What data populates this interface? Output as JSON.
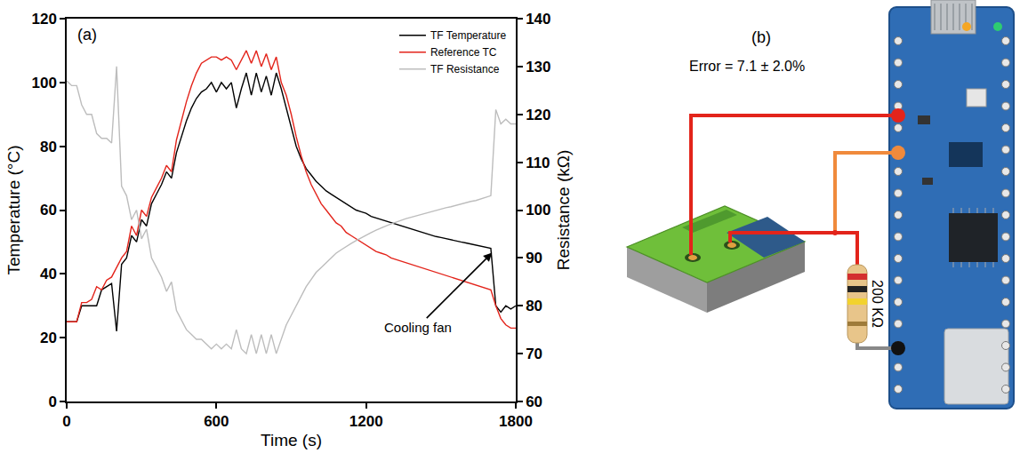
{
  "chart_data": {
    "type": "line",
    "x_label": "Time (s)",
    "y_label": "Temperature (°C)",
    "y2_label": "Resistance (kΩ)",
    "xlim": [
      0,
      1800
    ],
    "xticks": [
      0,
      600,
      1200,
      1800
    ],
    "ylim": [
      0,
      120
    ],
    "yticks": [
      0,
      20,
      40,
      60,
      80,
      100,
      120
    ],
    "y2lim": [
      60,
      140
    ],
    "y2ticks": [
      60,
      70,
      80,
      90,
      100,
      110,
      120,
      130,
      140
    ],
    "grid": false,
    "legend": "upper right",
    "annotations": [
      {
        "text": "(a)"
      },
      {
        "text": "Cooling fan",
        "x": 1710,
        "y": 47
      }
    ],
    "x": [
      0,
      20,
      40,
      60,
      80,
      100,
      120,
      140,
      160,
      180,
      200,
      220,
      240,
      260,
      280,
      300,
      320,
      340,
      360,
      380,
      400,
      420,
      440,
      460,
      480,
      500,
      520,
      540,
      560,
      580,
      600,
      620,
      640,
      660,
      680,
      700,
      720,
      740,
      760,
      780,
      800,
      820,
      840,
      860,
      880,
      900,
      920,
      940,
      960,
      980,
      1000,
      1020,
      1040,
      1060,
      1080,
      1100,
      1120,
      1140,
      1160,
      1180,
      1200,
      1220,
      1240,
      1260,
      1280,
      1300,
      1320,
      1340,
      1360,
      1380,
      1400,
      1420,
      1440,
      1460,
      1480,
      1500,
      1520,
      1540,
      1560,
      1580,
      1600,
      1620,
      1640,
      1660,
      1680,
      1700,
      1720,
      1740,
      1760,
      1780,
      1800
    ],
    "series": [
      {
        "name": "TF Temperature",
        "color": "#000000",
        "values": [
          25,
          25,
          25,
          30,
          30,
          30,
          30,
          35,
          36,
          37,
          22,
          43,
          45,
          52,
          50,
          57,
          55,
          62,
          65,
          68,
          72,
          70,
          78,
          83,
          88,
          92,
          95,
          97,
          98,
          100,
          97,
          100,
          98,
          100,
          92,
          98,
          103,
          96,
          103,
          97,
          102,
          96,
          103,
          98,
          92,
          86,
          80,
          76,
          73,
          71,
          69,
          67.5,
          66,
          65,
          64,
          63,
          62,
          61,
          60,
          59.5,
          59,
          58,
          57.5,
          57,
          56.5,
          56,
          55.5,
          55,
          54.5,
          54,
          53.5,
          53,
          52.5,
          52,
          51.7,
          51.4,
          51,
          50.7,
          50.4,
          50,
          49.7,
          49.4,
          49,
          48.7,
          48.3,
          48,
          30,
          28,
          30,
          29,
          30
        ]
      },
      {
        "name": "Reference TC",
        "color": "#e3241b",
        "values": [
          25,
          25,
          25,
          31,
          31,
          32,
          36,
          35,
          38,
          39,
          42,
          45,
          47,
          55,
          52,
          60,
          58,
          64,
          67,
          70,
          74,
          72,
          82,
          88,
          94,
          99,
          103,
          106,
          107,
          108,
          108,
          107,
          108,
          107,
          104,
          107,
          110,
          106,
          110,
          105,
          109,
          104,
          108,
          100,
          96,
          90,
          83,
          77,
          72,
          68,
          65,
          62,
          60,
          58,
          56,
          55,
          53,
          52,
          51,
          50,
          49,
          48,
          47,
          46.5,
          46,
          45,
          44.5,
          44,
          43.5,
          43,
          42.5,
          42,
          41.5,
          41,
          40.5,
          40,
          39.5,
          39,
          38.5,
          38,
          37.5,
          37,
          36.5,
          36,
          35.5,
          35,
          30,
          26,
          24,
          23,
          23
        ]
      },
      {
        "name": "TF Resistance",
        "color": "#bdbdbd",
        "axis": "y2",
        "values": [
          127,
          126,
          126,
          122,
          120,
          120,
          116,
          115,
          115,
          114,
          130,
          105,
          103,
          98,
          100,
          94,
          96,
          90,
          88,
          86,
          83,
          85,
          79,
          77,
          75,
          74,
          73,
          73,
          72,
          71,
          72,
          71,
          72,
          71,
          75,
          71,
          70,
          74,
          70,
          74,
          70,
          74,
          70,
          73,
          76,
          78,
          80,
          82,
          84,
          85.5,
          87,
          88,
          89,
          90,
          91,
          91.7,
          92.4,
          93,
          93.6,
          94.2,
          94.8,
          95.3,
          95.8,
          96.3,
          96.7,
          97.1,
          97.5,
          97.9,
          98.2,
          98.5,
          98.8,
          99.1,
          99.4,
          99.7,
          100,
          100.2,
          100.5,
          100.7,
          101,
          101.2,
          101.5,
          101.8,
          102,
          102.3,
          102.6,
          103,
          121,
          118,
          119,
          118,
          118
        ]
      }
    ]
  },
  "diagram": {
    "label": "(b)",
    "error_text": "Error = 7.1 ± 2.0%",
    "resistor_label": "200 KΩ"
  }
}
